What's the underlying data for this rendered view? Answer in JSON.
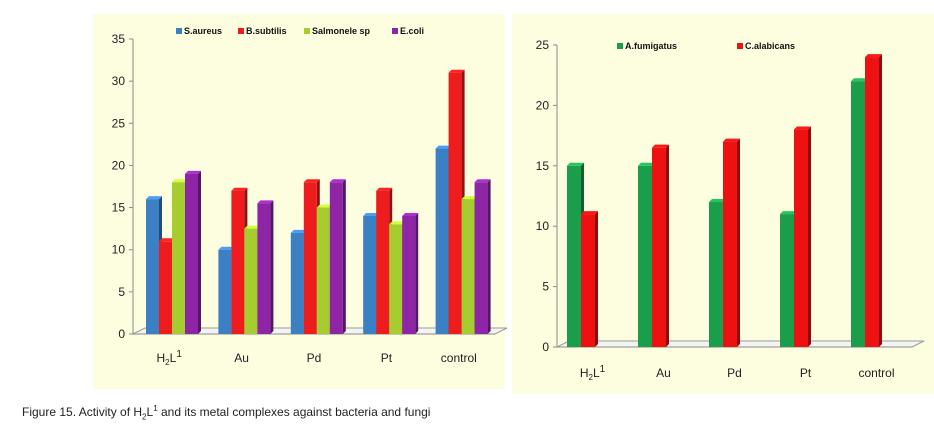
{
  "figure": {
    "caption_prefix": "Figure 15. Activity of H",
    "caption_sub": "2",
    "caption_mid": "L",
    "caption_sup": "1",
    "caption_suffix": " and its metal complexes against bacteria and fungi"
  },
  "chart_data": [
    {
      "type": "bar",
      "panel": "bacteria",
      "categories": [
        "H2L1",
        "Au",
        "Pd",
        "Pt",
        "control"
      ],
      "category_labels": [
        {
          "main": "H",
          "sub": "2",
          "main2": "L",
          "sup": "1"
        },
        {
          "main": "Au"
        },
        {
          "main": "Pd"
        },
        {
          "main": "Pt"
        },
        {
          "main": "control"
        }
      ],
      "series": [
        {
          "name": "S.aureus",
          "color": "#3b7fc4",
          "values": [
            16,
            10,
            12,
            14,
            22
          ]
        },
        {
          "name": "B.subtilis",
          "color": "#ee1c1c",
          "values": [
            11,
            17,
            18,
            17,
            31
          ]
        },
        {
          "name": "Salmonele sp",
          "color": "#a6cc2f",
          "values": [
            18,
            12.5,
            15,
            13,
            16
          ]
        },
        {
          "name": "E.coli",
          "color": "#8e24a6",
          "values": [
            19,
            15.5,
            18,
            14,
            18
          ]
        }
      ],
      "ylim": [
        0,
        35
      ],
      "yticks": [
        "0",
        "5",
        "10",
        "15",
        "20",
        "25",
        "30",
        "35"
      ],
      "legend": "top",
      "grid": false
    },
    {
      "type": "bar",
      "panel": "fungi",
      "categories": [
        "H2L1",
        "Au",
        "Pd",
        "Pt",
        "control"
      ],
      "category_labels": [
        {
          "main": "H",
          "sub": "2",
          "main2": "L",
          "sup": "1"
        },
        {
          "main": "Au"
        },
        {
          "main": "Pd"
        },
        {
          "main": "Pt"
        },
        {
          "main": "control"
        }
      ],
      "series": [
        {
          "name": "A.fumigatus",
          "color": "#1a9e4a",
          "values": [
            15,
            15,
            12,
            11,
            22
          ]
        },
        {
          "name": "C.alabicans",
          "color": "#ee1111",
          "values": [
            11,
            16.5,
            17,
            18,
            24
          ]
        }
      ],
      "ylim": [
        0,
        25
      ],
      "yticks": [
        "0",
        "5",
        "10",
        "15",
        "20",
        "25"
      ],
      "legend": "top",
      "grid": false
    }
  ]
}
